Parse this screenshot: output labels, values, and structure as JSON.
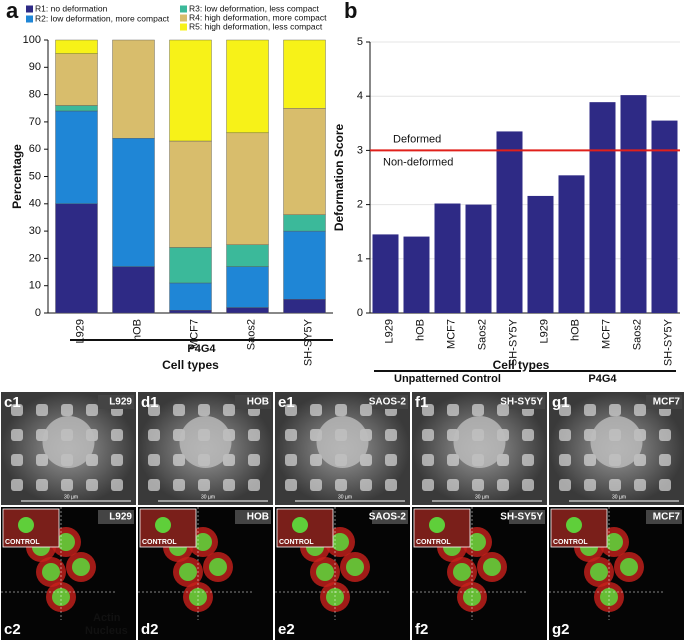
{
  "chart_data": [
    {
      "type": "stacked-bar",
      "panel": "a",
      "ylabel": "Percentage",
      "xlabel": "Cell types",
      "group": "P4G4",
      "categories": [
        "L929",
        "hOB",
        "MCF7",
        "Saos2",
        "SH-SY5Y"
      ],
      "series": [
        {
          "name": "R1: no deformation",
          "color": "#2e2a85",
          "values": [
            40,
            17,
            1,
            2,
            5
          ]
        },
        {
          "name": "R2: low deformation, more compact",
          "color": "#1f86d6",
          "values": [
            34,
            47,
            10,
            15,
            25
          ]
        },
        {
          "name": "R3: low deformation, less compact",
          "color": "#3bb99a",
          "values": [
            2,
            0,
            13,
            8,
            6
          ]
        },
        {
          "name": "R4: high deformation, more compact",
          "color": "#d8bd6c",
          "values": [
            19,
            36,
            39,
            41,
            39
          ]
        },
        {
          "name": "R5: high deformation, less compact",
          "color": "#f7f218",
          "values": [
            5,
            0,
            37,
            34,
            25
          ]
        }
      ],
      "ylim": [
        0,
        100
      ],
      "yticks": [
        0,
        10,
        20,
        30,
        40,
        50,
        60,
        70,
        80,
        90,
        100
      ],
      "legend": "top"
    },
    {
      "type": "grouped-bar",
      "panel": "b",
      "ylabel": "Deformation Score",
      "xlabel": "Cell types",
      "color": "#2e2a85",
      "groups": [
        {
          "label": "Unpatterned Control",
          "categories": [
            "L929",
            "hOB",
            "MCF7",
            "Saos2",
            "SH-SY5Y"
          ],
          "values": [
            1.45,
            1.41,
            2.02,
            2.0,
            3.35
          ]
        },
        {
          "label": "P4G4",
          "categories": [
            "L929",
            "hOB",
            "MCF7",
            "Saos2",
            "SH-SY5Y"
          ],
          "values": [
            2.16,
            2.54,
            3.89,
            4.02,
            3.55
          ]
        }
      ],
      "threshold": {
        "value": 3,
        "color": "#e0201b",
        "above_label": "Deformed",
        "below_label": "Non-deformed"
      },
      "ylim": [
        0,
        5
      ],
      "yticks": [
        0,
        1,
        2,
        3,
        4,
        5
      ],
      "grid": true
    }
  ],
  "micrographs": [
    {
      "top_label": "c1",
      "top_name": "L929",
      "bottom_label": "c2",
      "bottom_name": "L929",
      "scale": "30 µm",
      "inset": "CONTROL"
    },
    {
      "top_label": "d1",
      "top_name": "HOB",
      "bottom_label": "d2",
      "bottom_name": "HOB",
      "scale": "30 µm",
      "inset": "CONTROL"
    },
    {
      "top_label": "e1",
      "top_name": "SAOS-2",
      "bottom_label": "e2",
      "bottom_name": "SAOS-2",
      "scale": "30 µm",
      "inset": "CONTROL"
    },
    {
      "top_label": "f1",
      "top_name": "SH-SY5Y",
      "bottom_label": "f2",
      "bottom_name": "SH-SY5Y",
      "scale": "30 µm",
      "inset": "CONTROL"
    },
    {
      "top_label": "g1",
      "top_name": "MCF7",
      "bottom_label": "g2",
      "bottom_name": "MCF7",
      "scale": "30 µm",
      "inset": "CONTROL"
    }
  ],
  "stain_legend": {
    "actin": "Actin",
    "nucleus": "Nucleus"
  }
}
